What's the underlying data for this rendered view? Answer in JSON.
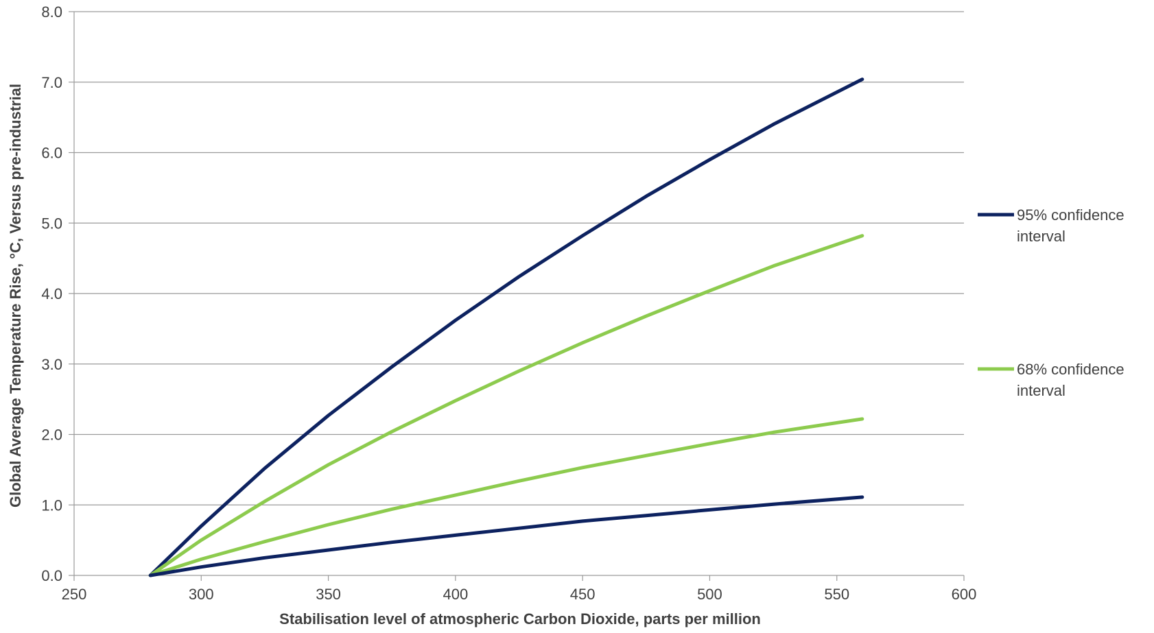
{
  "chart_data": {
    "type": "line",
    "xlabel": "Stabilisation level of atmospheric Carbon Dioxide, parts per million",
    "ylabel": "Global Average Temperature Rise, °C,  Versus pre-industrial",
    "xlim": [
      250,
      600
    ],
    "ylim": [
      0,
      8
    ],
    "x_ticks": [
      250,
      300,
      350,
      400,
      450,
      500,
      550,
      600
    ],
    "x_tick_labels": [
      "250",
      "300",
      "350",
      "400",
      "450",
      "500",
      "550",
      "600"
    ],
    "y_ticks": [
      0,
      1,
      2,
      3,
      4,
      5,
      6,
      7,
      8
    ],
    "y_tick_labels": [
      "0.0",
      "1.0",
      "2.0",
      "3.0",
      "4.0",
      "5.0",
      "6.0",
      "7.0",
      "8.0"
    ],
    "grid": "horizontal",
    "legend_position": "right",
    "legend": [
      {
        "label_line1": "95% confidence",
        "label_line2": "interval",
        "color": "#0d2260"
      },
      {
        "label_line1": "68% confidence",
        "label_line2": "interval",
        "color": "#8dcb4e"
      }
    ],
    "series": [
      {
        "group": "95% confidence interval",
        "bound": "upper",
        "color": "#0d2260",
        "x": [
          280,
          300,
          325,
          350,
          375,
          400,
          425,
          450,
          475,
          500,
          525,
          560
        ],
        "y": [
          0,
          0.7,
          1.52,
          2.27,
          2.96,
          3.62,
          4.24,
          4.82,
          5.38,
          5.9,
          6.4,
          7.04
        ]
      },
      {
        "group": "68% confidence interval",
        "bound": "upper",
        "color": "#8dcb4e",
        "x": [
          280,
          300,
          325,
          350,
          375,
          400,
          425,
          450,
          475,
          500,
          525,
          560
        ],
        "y": [
          0,
          0.5,
          1.05,
          1.57,
          2.04,
          2.48,
          2.9,
          3.3,
          3.68,
          4.04,
          4.39,
          4.82
        ]
      },
      {
        "group": "68% confidence interval",
        "bound": "lower",
        "color": "#8dcb4e",
        "x": [
          280,
          300,
          325,
          350,
          375,
          400,
          425,
          450,
          475,
          500,
          525,
          560
        ],
        "y": [
          0,
          0.23,
          0.48,
          0.72,
          0.94,
          1.14,
          1.34,
          1.53,
          1.7,
          1.87,
          2.03,
          2.22
        ]
      },
      {
        "group": "95% confidence interval",
        "bound": "lower",
        "color": "#0d2260",
        "x": [
          280,
          300,
          325,
          350,
          375,
          400,
          425,
          450,
          475,
          500,
          525,
          560
        ],
        "y": [
          0,
          0.12,
          0.25,
          0.36,
          0.47,
          0.57,
          0.67,
          0.77,
          0.85,
          0.93,
          1.01,
          1.11
        ]
      }
    ]
  },
  "colors": {
    "grid": "#9a9a9a",
    "axis": "#9a9a9a",
    "text": "#404040"
  }
}
